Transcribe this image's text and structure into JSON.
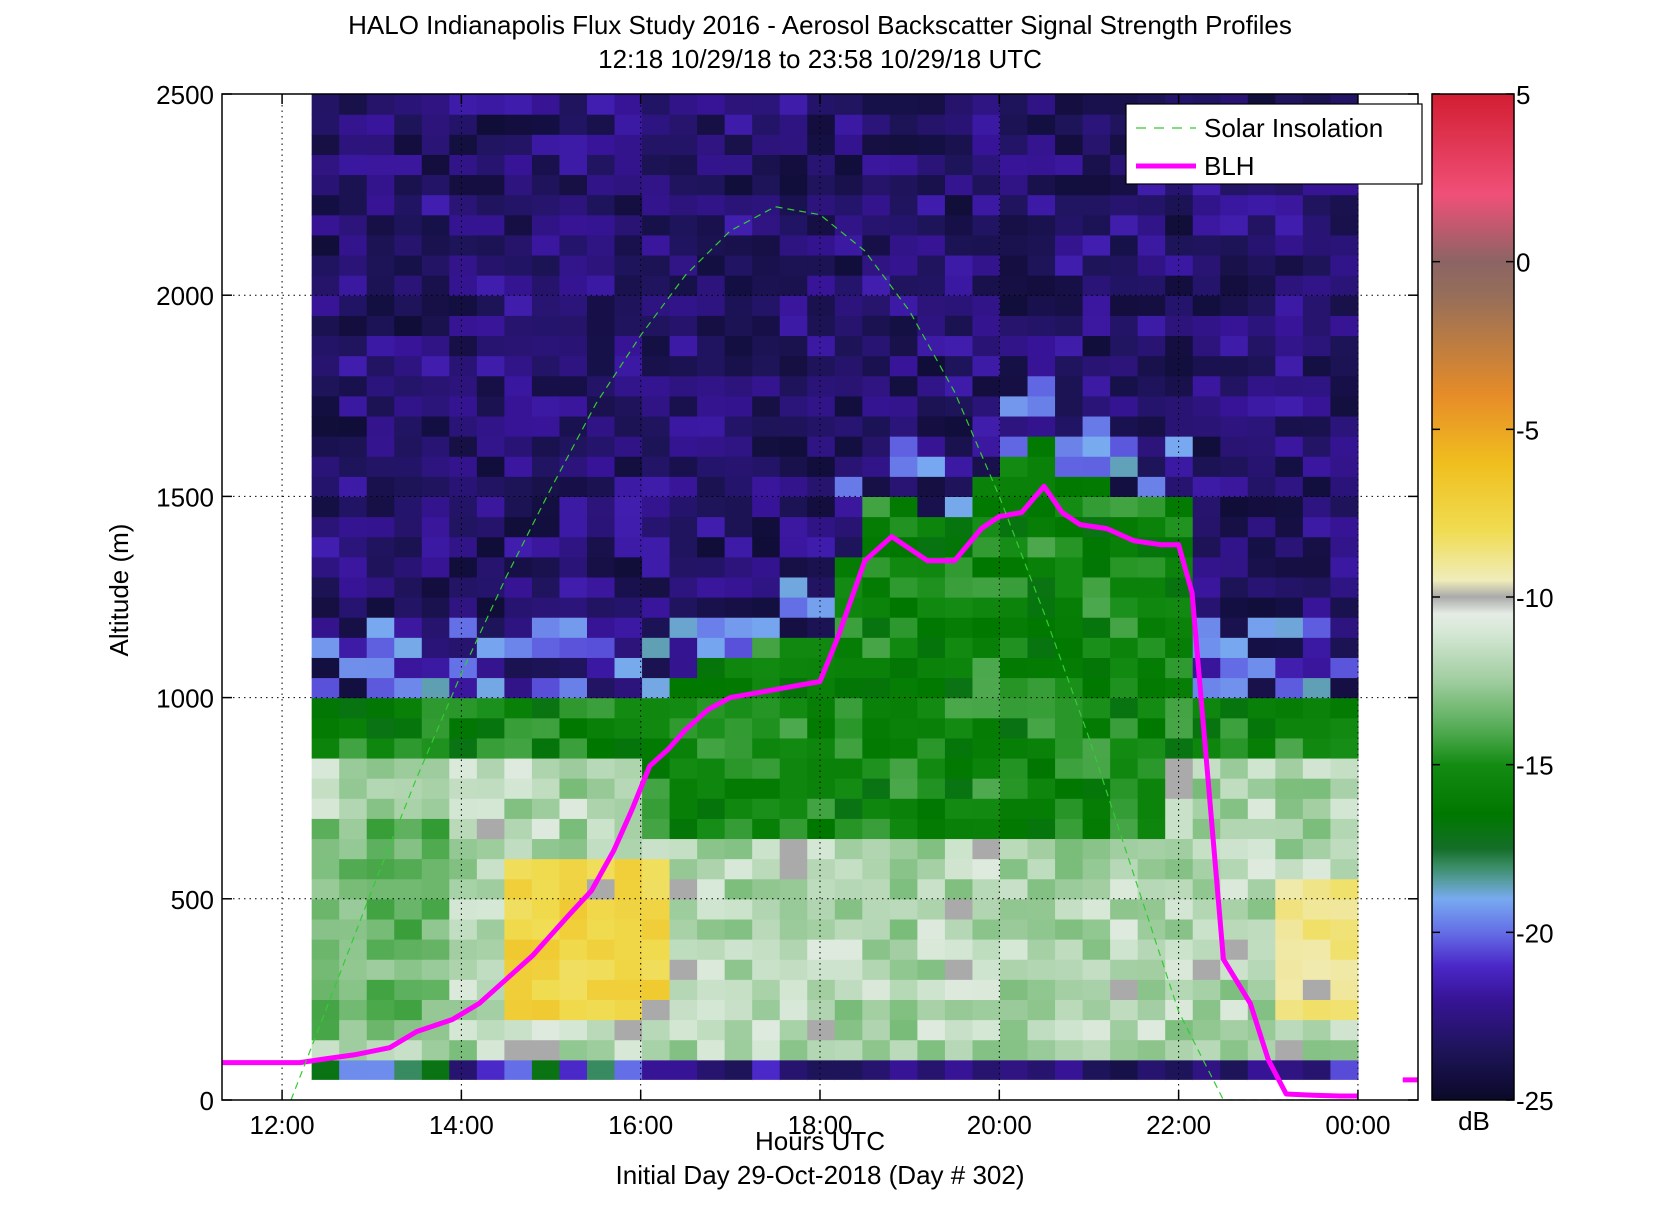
{
  "chart_data": {
    "type": "heatmap",
    "title": "HALO Indianapolis Flux Study 2016 - Aerosol Backscatter Signal Strength Profiles",
    "subtitle": "12:18 10/29/18 to 23:58 10/29/18  UTC",
    "xlabel": "Hours UTC",
    "xlabel_secondary": "Initial Day 29-Oct-2018 (Day # 302)",
    "ylabel": "Altitude (m)",
    "xlim": [
      11.33,
      24.67
    ],
    "ylim": [
      0,
      2500
    ],
    "x_ticks": [
      {
        "value": 12,
        "label": "12:00"
      },
      {
        "value": 14,
        "label": "14:00"
      },
      {
        "value": 16,
        "label": "16:00"
      },
      {
        "value": 18,
        "label": "18:00"
      },
      {
        "value": 20,
        "label": "20:00"
      },
      {
        "value": 22,
        "label": "22:00"
      },
      {
        "value": 24,
        "label": "00:00"
      }
    ],
    "y_ticks": [
      {
        "value": 0,
        "label": "0"
      },
      {
        "value": 500,
        "label": "500"
      },
      {
        "value": 1000,
        "label": "1000"
      },
      {
        "value": 1500,
        "label": "1500"
      },
      {
        "value": 2000,
        "label": "2000"
      },
      {
        "value": 2500,
        "label": "2500"
      }
    ],
    "grid": true,
    "heatmap": {
      "x_start": 12.33,
      "x_end": 24.0,
      "columns": 38,
      "y_start": 50,
      "y_end": 2500,
      "rows": 49,
      "units": "dB",
      "regions_note_levels": {
        "near_surface": -21,
        "lower_layer": -11,
        "mixed_layer": -15.5,
        "free_troposphere": -23
      }
    },
    "colorbar": {
      "label": "dB",
      "range": [
        -25,
        5
      ],
      "ticks": [
        {
          "value": 5,
          "label": "5"
        },
        {
          "value": 0,
          "label": "0"
        },
        {
          "value": -5,
          "label": "-5"
        },
        {
          "value": -10,
          "label": "-10"
        },
        {
          "value": -15,
          "label": "-15"
        },
        {
          "value": -20,
          "label": "-20"
        },
        {
          "value": -25,
          "label": "-25"
        }
      ]
    },
    "legend": {
      "placement": "top-right",
      "entries": [
        {
          "name": "Solar Insolation",
          "style": "dashed",
          "color": "#33cc33"
        },
        {
          "name": "BLH",
          "style": "solid",
          "color": "#ff00ff"
        }
      ]
    },
    "series": [
      {
        "name": "BLH",
        "color": "#ff00ff",
        "x": [
          11.33,
          12.0,
          12.2,
          12.5,
          12.8,
          13.2,
          13.5,
          13.9,
          14.2,
          14.5,
          14.8,
          15.0,
          15.2,
          15.45,
          15.7,
          15.9,
          16.1,
          16.3,
          16.5,
          16.75,
          17.0,
          17.25,
          17.5,
          17.75,
          18.0,
          18.2,
          18.5,
          18.8,
          19.2,
          19.5,
          19.8,
          20.0,
          20.25,
          20.5,
          20.7,
          20.9,
          21.2,
          21.5,
          21.8,
          22.0,
          22.15,
          22.5,
          22.8,
          23.0,
          23.2,
          23.5,
          23.8,
          24.0,
          24.5,
          24.67
        ],
        "y": [
          93,
          93,
          93,
          103,
          112,
          130,
          170,
          200,
          240,
          300,
          360,
          410,
          460,
          520,
          620,
          720,
          830,
          870,
          920,
          970,
          1000,
          1010,
          1020,
          1030,
          1040,
          1150,
          1340,
          1400,
          1340,
          1340,
          1420,
          1450,
          1460,
          1525,
          1460,
          1430,
          1420,
          1390,
          1380,
          1380,
          1260,
          350,
          240,
          100,
          15,
          12,
          10,
          10,
          50,
          50
        ]
      },
      {
        "name": "Solar Insolation",
        "color": "#33cc33",
        "x": [
          12.1,
          12.5,
          13.0,
          13.5,
          14.0,
          14.5,
          15.0,
          15.5,
          16.0,
          16.5,
          17.0,
          17.5,
          18.0,
          18.5,
          19.0,
          19.5,
          20.0,
          20.5,
          21.0,
          21.5,
          22.0,
          22.5,
          23.0,
          23.6
        ],
        "y": [
          0,
          230,
          520,
          800,
          1060,
          1300,
          1520,
          1730,
          1900,
          2050,
          2160,
          2220,
          2200,
          2110,
          1960,
          1760,
          1500,
          1210,
          900,
          560,
          220,
          0,
          0,
          0
        ]
      }
    ]
  }
}
